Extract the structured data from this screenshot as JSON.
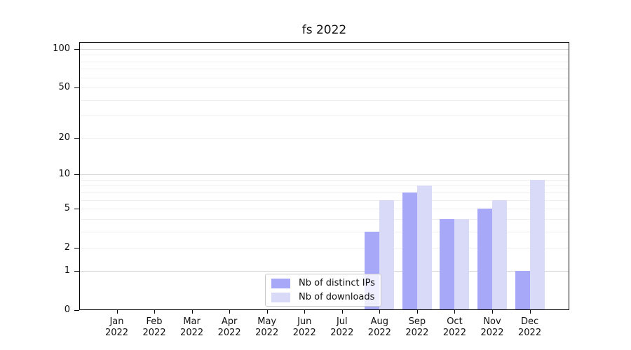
{
  "title": "fs 2022",
  "legend": {
    "position": "lower center",
    "items": [
      {
        "label": "Nb of distinct IPs",
        "color": "#a8a8f8"
      },
      {
        "label": "Nb of downloads",
        "color": "#d9d9f8"
      }
    ]
  },
  "axes": {
    "y_tick_labels": [
      "0",
      "1",
      "2",
      "5",
      "10",
      "20",
      "50",
      "100"
    ],
    "x_tick_labels": [
      "Jan 2022",
      "Feb 2022",
      "Mar 2022",
      "Apr 2022",
      "May 2022",
      "Jun 2022",
      "Jul 2022",
      "Aug 2022",
      "Sep 2022",
      "Oct 2022",
      "Nov 2022",
      "Dec 2022"
    ]
  },
  "chart_data": {
    "type": "bar",
    "title": "fs 2022",
    "xlabel": "",
    "ylabel": "",
    "categories": [
      "Jan 2022",
      "Feb 2022",
      "Mar 2022",
      "Apr 2022",
      "May 2022",
      "Jun 2022",
      "Jul 2022",
      "Aug 2022",
      "Sep 2022",
      "Oct 2022",
      "Nov 2022",
      "Dec 2022"
    ],
    "series": [
      {
        "name": "Nb of distinct IPs",
        "color": "#a8a8f8",
        "values": [
          0,
          0,
          0,
          0,
          0,
          0,
          0,
          3,
          7,
          4,
          5,
          1
        ]
      },
      {
        "name": "Nb of downloads",
        "color": "#d9d9f8",
        "values": [
          0,
          0,
          0,
          0,
          0,
          0,
          0,
          6,
          8,
          4,
          6,
          9
        ]
      }
    ],
    "yscale": "symlog",
    "ylim": [
      0,
      113
    ],
    "yticks": [
      0,
      1,
      2,
      5,
      10,
      20,
      50,
      100
    ],
    "major_grid_values": [
      1,
      10,
      100
    ],
    "minor_grid_values": [
      2,
      3,
      4,
      5,
      6,
      7,
      8,
      9,
      20,
      30,
      40,
      50,
      60,
      70,
      80,
      90
    ],
    "grid": true,
    "legend_position": "lower center"
  },
  "colors": {
    "background": "#ffffff",
    "axis": "#000000",
    "major_grid": "#d5d5d5",
    "minor_grid": "#efefef",
    "legend_border": "#c9c9c9"
  }
}
